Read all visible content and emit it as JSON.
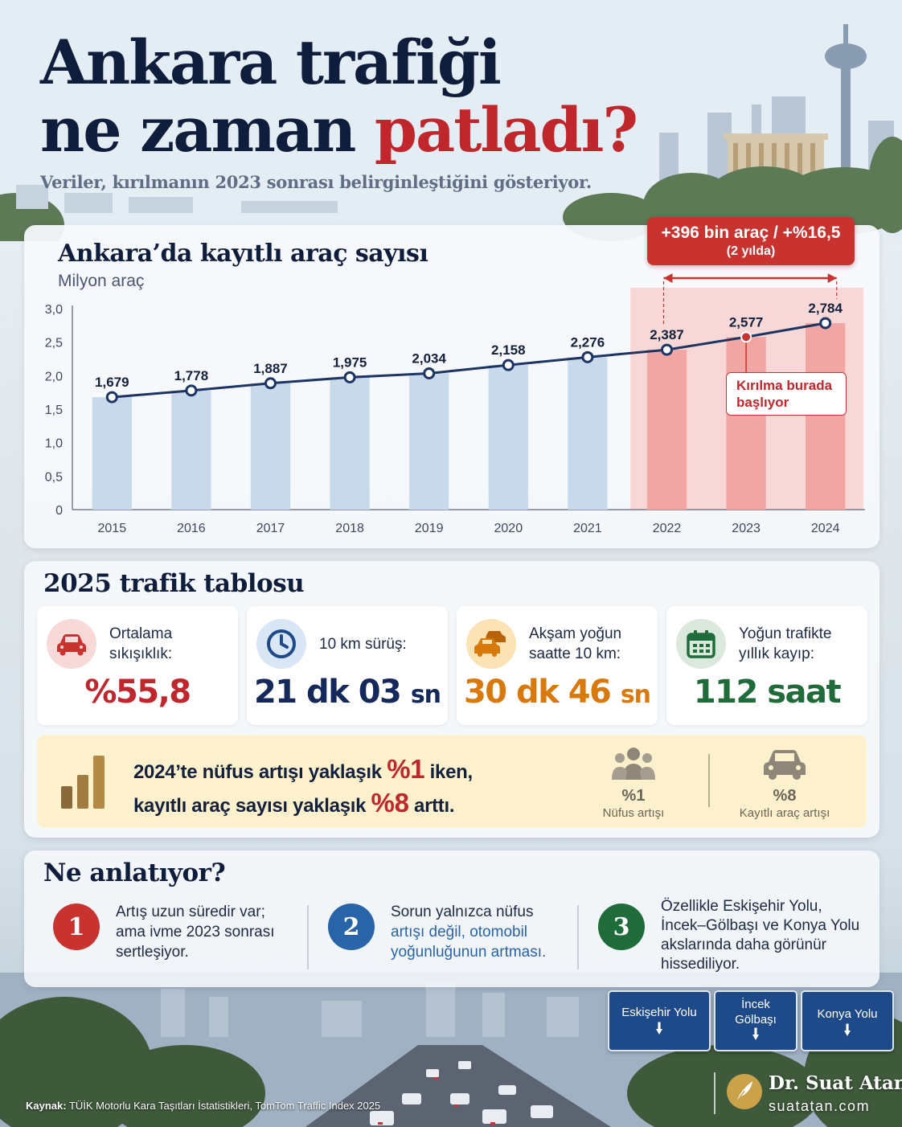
{
  "header": {
    "title_line1": "Ankara trafiği",
    "title_line2_prefix": "ne zaman ",
    "title_line2_accent": "patladı?",
    "subtitle": "Veriler, kırılmanın 2023 sonrası belirginleştiğini gösteriyor."
  },
  "colors": {
    "title": "#0f1d3c",
    "accent_red": "#c0272d",
    "bar_normal": "#c9d9ec",
    "bar_highlight": "#f2a6a4",
    "highlight_zone": "#f8d2d0",
    "line": "#1c3563",
    "green": "#1f6b3a",
    "orange": "#d9780b",
    "navy": "#14285a"
  },
  "chart_data": {
    "type": "bar",
    "title": "Ankara’da kayıtlı araç sayısı",
    "subtitle": "Milyon araç",
    "categories": [
      "2015",
      "2016",
      "2017",
      "2018",
      "2019",
      "2020",
      "2021",
      "2022",
      "2023",
      "2024"
    ],
    "values": [
      1.679,
      1.778,
      1.887,
      1.975,
      2.034,
      2.158,
      2.276,
      2.387,
      2.577,
      2.784
    ],
    "value_labels": [
      "1,679",
      "1,778",
      "1,887",
      "1,975",
      "2,034",
      "2,158",
      "2,276",
      "2,387",
      "2,577",
      "2,784"
    ],
    "overlay_line": true,
    "ylim": [
      0,
      3.0
    ],
    "yticks": [
      0,
      0.5,
      1.0,
      1.5,
      2.0,
      2.5,
      3.0
    ],
    "ytick_labels": [
      "0",
      "0,5",
      "1,0",
      "1,5",
      "2,0",
      "2,5",
      "3,0"
    ],
    "highlight_categories": [
      "2022",
      "2023",
      "2024"
    ],
    "breakpoint_category": "2023",
    "grid": false,
    "annotations": {
      "growth_line1": "+396 bin araç / +%16,5",
      "growth_line2": "(2 yılda)",
      "break_line1": "Kırılma burada",
      "break_line2": "başlıyor"
    }
  },
  "traffic_table": {
    "title": "2025 trafik tablosu",
    "cards": [
      {
        "icon": "car-icon",
        "label": "Ortalama sıkışıklık:",
        "value": "%55,8",
        "unit": "",
        "color": "#c0272d",
        "icon_bg": "#f7d9d7"
      },
      {
        "icon": "clock-icon",
        "label": "10 km sürüş:",
        "value": "21 dk 03 ",
        "unit": "sn",
        "color": "#14285a",
        "icon_bg": "#d8e6f5"
      },
      {
        "icon": "cars-icon",
        "label": "Akşam yoğun saatte 10 km:",
        "value": "30 dk 46 ",
        "unit": "sn",
        "color": "#d9780b",
        "icon_bg": "#fbe3b5"
      },
      {
        "icon": "calendar-icon",
        "label": "Yoğun trafikte yıllık kayıp:",
        "value": "112 saat",
        "unit": "",
        "color": "#1f6b3a",
        "icon_bg": "#dbe9dc"
      }
    ],
    "comparison": {
      "line1_a": "2024’te nüfus artışı yaklaşık ",
      "line1_big": "%1",
      "line1_b": " iken,",
      "line2_a": "kayıtlı araç sayısı yaklaşık ",
      "line2_big": "%8",
      "line2_b": " arttı.",
      "population_value": "%1",
      "population_label": "Nüfus artışı",
      "vehicle_value": "%8",
      "vehicle_label": "Kayıtlı araç artışı"
    }
  },
  "story": {
    "title": "Ne anlatıyor?",
    "items": [
      {
        "number": "1",
        "color": "#c8332f",
        "lines": [
          "Artış uzun süredir var;",
          "ama ivme 2023 sonrası",
          "sertleşiyor."
        ]
      },
      {
        "number": "2",
        "color": "#2a64a8",
        "lines": [
          "Sorun yalnızca nüfus",
          "artışı değil, otomobil",
          "yoğunluğunun artması."
        ]
      },
      {
        "number": "3",
        "color": "#1f6b3a",
        "lines": [
          "Özellikle Eskişehir Yolu,",
          "İncek–Gölbaşı ve Konya Yolu",
          "akslarında daha görünür",
          "hissediliyor."
        ]
      }
    ]
  },
  "road_signs": [
    {
      "label_line1": "Eskişehir Yolu",
      "label_line2": ""
    },
    {
      "label_line1": "İncek",
      "label_line2": "Gölbaşı"
    },
    {
      "label_line1": "Konya Yolu",
      "label_line2": ""
    }
  ],
  "footer": {
    "source_label": "Kaynak:",
    "source_text": " TÜİK Motorlu Kara Taşıtları İstatistikleri, TomTom Traffic Index 2025",
    "author": "Dr. Suat Atan",
    "website": "suatatan.com"
  }
}
